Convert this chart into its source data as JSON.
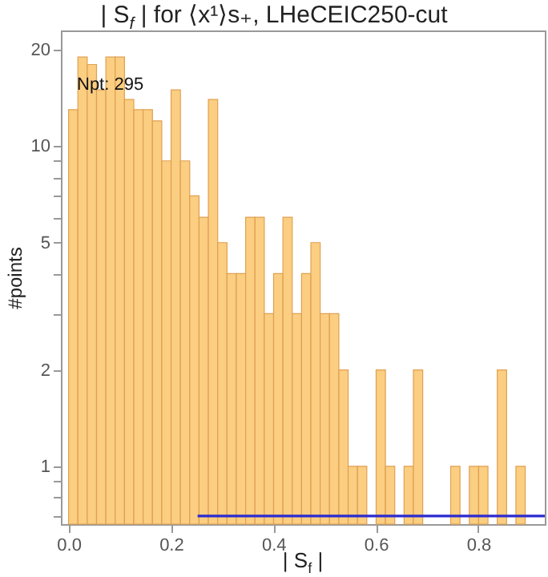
{
  "chart_data": {
    "type": "histogram",
    "title": "| S$_{f}$ | for ⟨x¹⟩s₊, LHeCEIC250-cut",
    "xlabel": "| S$_{f}$ |",
    "ylabel": "#points",
    "bins": [
      0,
      0.0182,
      0.0364,
      0.0546,
      0.0728,
      0.091,
      0.1092,
      0.1274,
      0.1456,
      0.1638,
      0.182,
      0.2002,
      0.2184,
      0.2366,
      0.2548,
      0.273,
      0.2912,
      0.3094,
      0.3276,
      0.3458,
      0.364,
      0.3822,
      0.4004,
      0.4186,
      0.4368,
      0.455,
      0.4732,
      0.4914,
      0.5096,
      0.5278,
      0.546,
      0.5642,
      0.5824,
      0.6006,
      0.6188,
      0.637,
      0.6552,
      0.6734,
      0.6916,
      0.7098,
      0.728,
      0.7462,
      0.7644,
      0.7826,
      0.8008,
      0.819,
      0.8372,
      0.8554,
      0.8736,
      0.8918
    ],
    "values": [
      13,
      19,
      18,
      15,
      19,
      19,
      14,
      13,
      13,
      12,
      9,
      15,
      9,
      7,
      6,
      14,
      5,
      4,
      4,
      6,
      6,
      3,
      4,
      6,
      3,
      4,
      5,
      3,
      3,
      2,
      1,
      1,
      null,
      2,
      1,
      null,
      1,
      2,
      null,
      null,
      null,
      1,
      null,
      1,
      1,
      null,
      2,
      null,
      1
    ],
    "color": "#fbce82",
    "series": [
      {
        "type": "line",
        "x": [
          0.252,
          0.93
        ],
        "values": [
          0.7,
          0.7
        ],
        "color": "#2b2bd0"
      }
    ],
    "xlim": [
      -0.015,
      0.93
    ],
    "ylim": [
      0.66,
      23
    ],
    "log": "y",
    "xticks": [
      {
        "value": 0,
        "label": "0.0"
      },
      {
        "value": 0.2,
        "label": "0.2"
      },
      {
        "value": 0.4,
        "label": "0.4"
      },
      {
        "value": 0.6,
        "label": "0.6"
      },
      {
        "value": 0.8,
        "label": "0.8"
      }
    ],
    "yticks": [
      {
        "value": 0.7,
        "label": null
      },
      {
        "value": 0.8,
        "label": null
      },
      {
        "value": 0.9,
        "label": null
      },
      1,
      2,
      {
        "value": 3,
        "label": null
      },
      {
        "value": 4,
        "label": null
      },
      5,
      {
        "value": 6,
        "label": null
      },
      {
        "value": 7,
        "label": null
      },
      {
        "value": 8,
        "label": null
      },
      {
        "value": 9,
        "label": null
      },
      10,
      20
    ],
    "annotations": [
      "Npt: 295"
    ]
  }
}
